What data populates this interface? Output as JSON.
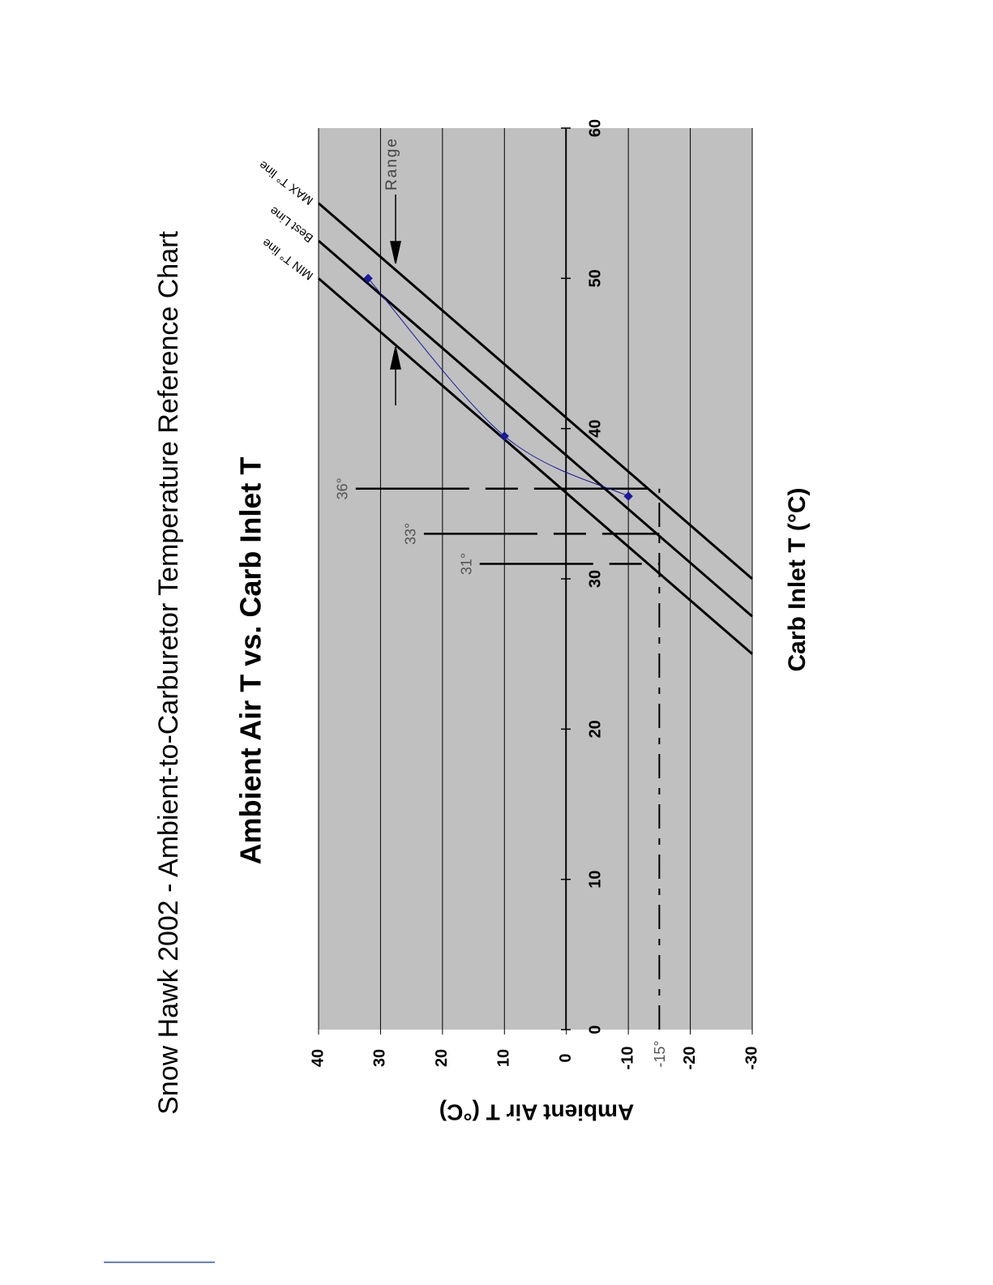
{
  "header": "Snow Hawk 2002 - Ambient-to-Carburetor Temperature Reference Chart",
  "chart_data": {
    "type": "line",
    "title": "Ambient Air T vs. Carb Inlet T",
    "x_label": "Carb Inlet T (°C)",
    "y_label": "Ambient Air T (°C)",
    "xlim": [
      0,
      60
    ],
    "xticks": [
      0,
      10,
      20,
      30,
      40,
      50,
      60
    ],
    "ylim": [
      -30,
      40
    ],
    "yticks": [
      40,
      30,
      20,
      10,
      0,
      -10,
      -20,
      -30
    ],
    "grid": true,
    "lines": [
      {
        "name": "MIN T° line",
        "x": [
          25,
          50
        ],
        "y": [
          -30,
          40
        ]
      },
      {
        "name": "Best Line",
        "x": [
          27.5,
          52.5
        ],
        "y": [
          -30,
          40
        ]
      },
      {
        "name": "MAX T° line",
        "x": [
          30,
          55
        ],
        "y": [
          -30,
          40
        ]
      }
    ],
    "series": [
      {
        "color": "#1a1a9a",
        "x": [
          35.5,
          39.5,
          50
        ],
        "values": [
          -10,
          10,
          32
        ]
      }
    ],
    "guides": [
      {
        "label": "36°",
        "x": 36,
        "y": 34
      },
      {
        "label": "33°",
        "x": 33,
        "y": 23
      },
      {
        "label": "31°",
        "x": 31,
        "y": 14
      }
    ],
    "ref_level": {
      "label": "-15°",
      "y": -15
    },
    "range_label": "Range"
  }
}
